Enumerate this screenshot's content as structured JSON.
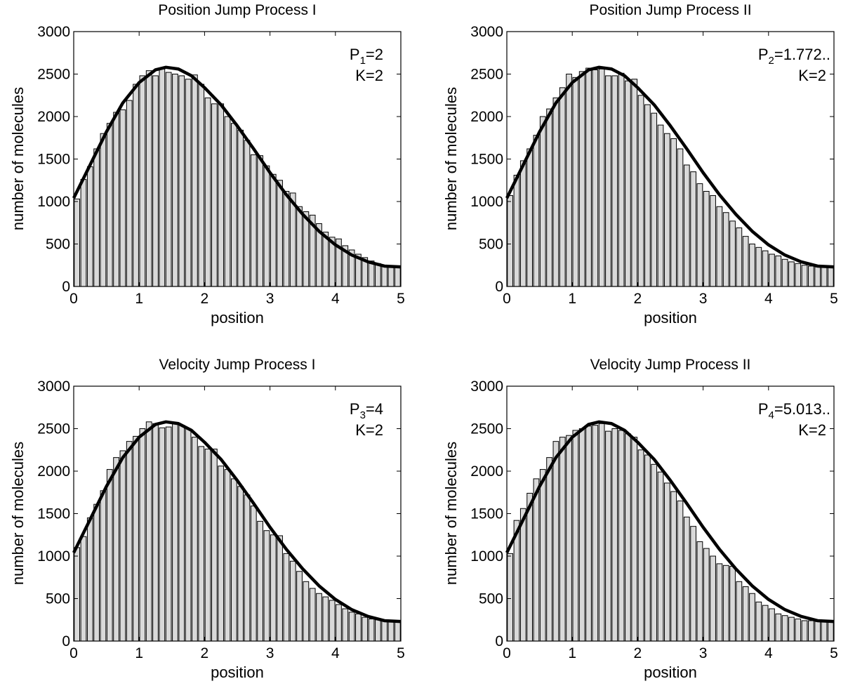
{
  "chart_data": [
    {
      "type": "bar",
      "title": "Position Jump Process I",
      "xlabel": "position",
      "ylabel": "number of molecules",
      "xlim": [
        0,
        5
      ],
      "ylim": [
        0,
        3000
      ],
      "xticks": [
        "0",
        "1",
        "2",
        "3",
        "4",
        "5"
      ],
      "yticks": [
        "0",
        "500",
        "1000",
        "1500",
        "2000",
        "2500",
        "3000"
      ],
      "annotation": {
        "symbol": "P",
        "subscript": "1",
        "value": "=2",
        "k": "K=2"
      },
      "bin_width": 0.1,
      "bin_centers": [
        0.05,
        0.15,
        0.25,
        0.35,
        0.45,
        0.55,
        0.65,
        0.75,
        0.85,
        0.95,
        1.05,
        1.15,
        1.25,
        1.35,
        1.45,
        1.55,
        1.65,
        1.75,
        1.85,
        1.95,
        2.05,
        2.15,
        2.25,
        2.35,
        2.45,
        2.55,
        2.65,
        2.75,
        2.85,
        2.95,
        3.05,
        3.15,
        3.25,
        3.35,
        3.45,
        3.55,
        3.65,
        3.75,
        3.85,
        3.95,
        4.05,
        4.15,
        4.25,
        4.35,
        4.45,
        4.55,
        4.65,
        4.75,
        4.85,
        4.95
      ],
      "values": [
        1030,
        1260,
        1410,
        1620,
        1800,
        1920,
        2050,
        2080,
        2190,
        2380,
        2480,
        2540,
        2480,
        2560,
        2520,
        2500,
        2480,
        2440,
        2490,
        2380,
        2220,
        2150,
        2150,
        2000,
        1920,
        1840,
        1720,
        1550,
        1540,
        1420,
        1320,
        1250,
        1120,
        1100,
        940,
        880,
        840,
        740,
        640,
        580,
        560,
        480,
        430,
        380,
        340,
        300,
        270,
        250,
        240,
        230
      ],
      "series": [
        {
          "type": "line",
          "values_fn_samples": [
            [
              0,
              1040
            ],
            [
              0.25,
              1430
            ],
            [
              0.5,
              1820
            ],
            [
              0.75,
              2160
            ],
            [
              1.0,
              2400
            ],
            [
              1.25,
              2550
            ],
            [
              1.41,
              2580
            ],
            [
              1.6,
              2560
            ],
            [
              1.8,
              2480
            ],
            [
              2.0,
              2340
            ],
            [
              2.25,
              2140
            ],
            [
              2.5,
              1890
            ],
            [
              2.75,
              1620
            ],
            [
              3.0,
              1340
            ],
            [
              3.25,
              1080
            ],
            [
              3.5,
              850
            ],
            [
              3.75,
              650
            ],
            [
              4.0,
              490
            ],
            [
              4.25,
              370
            ],
            [
              4.5,
              290
            ],
            [
              4.75,
              240
            ],
            [
              5.0,
              230
            ]
          ]
        }
      ]
    },
    {
      "type": "bar",
      "title": "Position Jump Process II",
      "xlabel": "position",
      "ylabel": "number of molecules",
      "xlim": [
        0,
        5
      ],
      "ylim": [
        0,
        3000
      ],
      "xticks": [
        "0",
        "1",
        "2",
        "3",
        "4",
        "5"
      ],
      "yticks": [
        "0",
        "500",
        "1000",
        "1500",
        "2000",
        "2500",
        "3000"
      ],
      "annotation": {
        "symbol": "P",
        "subscript": "2",
        "value": "=1.772..",
        "k": "K=2"
      },
      "bin_width": 0.1,
      "bin_centers": [
        0.05,
        0.15,
        0.25,
        0.35,
        0.45,
        0.55,
        0.65,
        0.75,
        0.85,
        0.95,
        1.05,
        1.15,
        1.25,
        1.35,
        1.45,
        1.55,
        1.65,
        1.75,
        1.85,
        1.95,
        2.05,
        2.15,
        2.25,
        2.35,
        2.45,
        2.55,
        2.65,
        2.75,
        2.85,
        2.95,
        3.05,
        3.15,
        3.25,
        3.35,
        3.45,
        3.55,
        3.65,
        3.75,
        3.85,
        3.95,
        4.05,
        4.15,
        4.25,
        4.35,
        4.45,
        4.55,
        4.65,
        4.75,
        4.85,
        4.95
      ],
      "values": [
        1070,
        1310,
        1480,
        1620,
        1780,
        2000,
        2090,
        2220,
        2340,
        2500,
        2460,
        2530,
        2570,
        2550,
        2560,
        2480,
        2480,
        2510,
        2420,
        2440,
        2250,
        2140,
        2040,
        1900,
        1800,
        1740,
        1620,
        1430,
        1350,
        1210,
        1120,
        1070,
        940,
        870,
        770,
        690,
        590,
        500,
        460,
        420,
        380,
        360,
        320,
        290,
        270,
        250,
        240,
        230,
        230,
        220
      ],
      "series": [
        {
          "type": "line",
          "values_fn_samples": [
            [
              0,
              1040
            ],
            [
              0.25,
              1430
            ],
            [
              0.5,
              1820
            ],
            [
              0.75,
              2160
            ],
            [
              1.0,
              2400
            ],
            [
              1.25,
              2550
            ],
            [
              1.41,
              2580
            ],
            [
              1.6,
              2560
            ],
            [
              1.8,
              2480
            ],
            [
              2.0,
              2340
            ],
            [
              2.25,
              2140
            ],
            [
              2.5,
              1890
            ],
            [
              2.75,
              1620
            ],
            [
              3.0,
              1340
            ],
            [
              3.25,
              1080
            ],
            [
              3.5,
              850
            ],
            [
              3.75,
              650
            ],
            [
              4.0,
              490
            ],
            [
              4.25,
              370
            ],
            [
              4.5,
              290
            ],
            [
              4.75,
              240
            ],
            [
              5.0,
              230
            ]
          ]
        }
      ]
    },
    {
      "type": "bar",
      "title": "Velocity Jump Process I",
      "xlabel": "position",
      "ylabel": "number of molecules",
      "xlim": [
        0,
        5
      ],
      "ylim": [
        0,
        3000
      ],
      "xticks": [
        "0",
        "1",
        "2",
        "3",
        "4",
        "5"
      ],
      "yticks": [
        "0",
        "500",
        "1000",
        "1500",
        "2000",
        "2500",
        "3000"
      ],
      "annotation": {
        "symbol": "P",
        "subscript": "3",
        "value": "=4",
        "k": "K=2"
      },
      "bin_width": 0.1,
      "bin_centers": [
        0.05,
        0.15,
        0.25,
        0.35,
        0.45,
        0.55,
        0.65,
        0.75,
        0.85,
        0.95,
        1.05,
        1.15,
        1.25,
        1.35,
        1.45,
        1.55,
        1.65,
        1.75,
        1.85,
        1.95,
        2.05,
        2.15,
        2.25,
        2.35,
        2.45,
        2.55,
        2.65,
        2.75,
        2.85,
        2.95,
        3.05,
        3.15,
        3.25,
        3.35,
        3.45,
        3.55,
        3.65,
        3.75,
        3.85,
        3.95,
        4.05,
        4.15,
        4.25,
        4.35,
        4.45,
        4.55,
        4.65,
        4.75,
        4.85,
        4.95
      ],
      "values": [
        1100,
        1230,
        1450,
        1610,
        1770,
        2020,
        2160,
        2240,
        2350,
        2410,
        2500,
        2580,
        2560,
        2510,
        2520,
        2560,
        2540,
        2500,
        2400,
        2290,
        2260,
        2260,
        2060,
        2020,
        1910,
        1820,
        1720,
        1590,
        1410,
        1300,
        1250,
        1240,
        1030,
        940,
        820,
        700,
        620,
        560,
        520,
        480,
        430,
        380,
        340,
        320,
        280,
        260,
        250,
        240,
        230,
        230
      ],
      "series": [
        {
          "type": "line",
          "values_fn_samples": [
            [
              0,
              1040
            ],
            [
              0.25,
              1430
            ],
            [
              0.5,
              1820
            ],
            [
              0.75,
              2160
            ],
            [
              1.0,
              2400
            ],
            [
              1.25,
              2550
            ],
            [
              1.41,
              2580
            ],
            [
              1.6,
              2560
            ],
            [
              1.8,
              2480
            ],
            [
              2.0,
              2340
            ],
            [
              2.25,
              2140
            ],
            [
              2.5,
              1890
            ],
            [
              2.75,
              1620
            ],
            [
              3.0,
              1340
            ],
            [
              3.25,
              1080
            ],
            [
              3.5,
              850
            ],
            [
              3.75,
              650
            ],
            [
              4.0,
              490
            ],
            [
              4.25,
              370
            ],
            [
              4.5,
              290
            ],
            [
              4.75,
              240
            ],
            [
              5.0,
              230
            ]
          ]
        }
      ]
    },
    {
      "type": "bar",
      "title": "Velocity Jump Process II",
      "xlabel": "position",
      "ylabel": "number of molecules",
      "xlim": [
        0,
        5
      ],
      "ylim": [
        0,
        3000
      ],
      "xticks": [
        "0",
        "1",
        "2",
        "3",
        "4",
        "5"
      ],
      "yticks": [
        "0",
        "500",
        "1000",
        "1500",
        "2000",
        "2500",
        "3000"
      ],
      "annotation": {
        "symbol": "P",
        "subscript": "4",
        "value": "=5.013..",
        "k": "K=2"
      },
      "bin_width": 0.1,
      "bin_centers": [
        0.05,
        0.15,
        0.25,
        0.35,
        0.45,
        0.55,
        0.65,
        0.75,
        0.85,
        0.95,
        1.05,
        1.15,
        1.25,
        1.35,
        1.45,
        1.55,
        1.65,
        1.75,
        1.85,
        1.95,
        2.05,
        2.15,
        2.25,
        2.35,
        2.45,
        2.55,
        2.65,
        2.75,
        2.85,
        2.95,
        3.05,
        3.15,
        3.25,
        3.35,
        3.45,
        3.55,
        3.65,
        3.75,
        3.85,
        3.95,
        4.05,
        4.15,
        4.25,
        4.35,
        4.45,
        4.55,
        4.65,
        4.75,
        4.85,
        4.95
      ],
      "values": [
        1030,
        1420,
        1560,
        1740,
        1910,
        2020,
        2160,
        2350,
        2400,
        2420,
        2480,
        2500,
        2530,
        2540,
        2560,
        2470,
        2500,
        2480,
        2440,
        2400,
        2250,
        2190,
        2080,
        1990,
        1860,
        1760,
        1650,
        1460,
        1350,
        1170,
        1090,
        1000,
        910,
        890,
        880,
        700,
        640,
        560,
        460,
        420,
        380,
        320,
        300,
        280,
        260,
        240,
        240,
        230,
        230,
        220
      ],
      "series": [
        {
          "type": "line",
          "values_fn_samples": [
            [
              0,
              1040
            ],
            [
              0.25,
              1430
            ],
            [
              0.5,
              1820
            ],
            [
              0.75,
              2160
            ],
            [
              1.0,
              2400
            ],
            [
              1.25,
              2550
            ],
            [
              1.41,
              2580
            ],
            [
              1.6,
              2560
            ],
            [
              1.8,
              2480
            ],
            [
              2.0,
              2340
            ],
            [
              2.25,
              2140
            ],
            [
              2.5,
              1890
            ],
            [
              2.75,
              1620
            ],
            [
              3.0,
              1340
            ],
            [
              3.25,
              1080
            ],
            [
              3.5,
              850
            ],
            [
              3.75,
              650
            ],
            [
              4.0,
              490
            ],
            [
              4.25,
              370
            ],
            [
              4.5,
              290
            ],
            [
              4.75,
              240
            ],
            [
              5.0,
              230
            ]
          ]
        }
      ]
    }
  ]
}
